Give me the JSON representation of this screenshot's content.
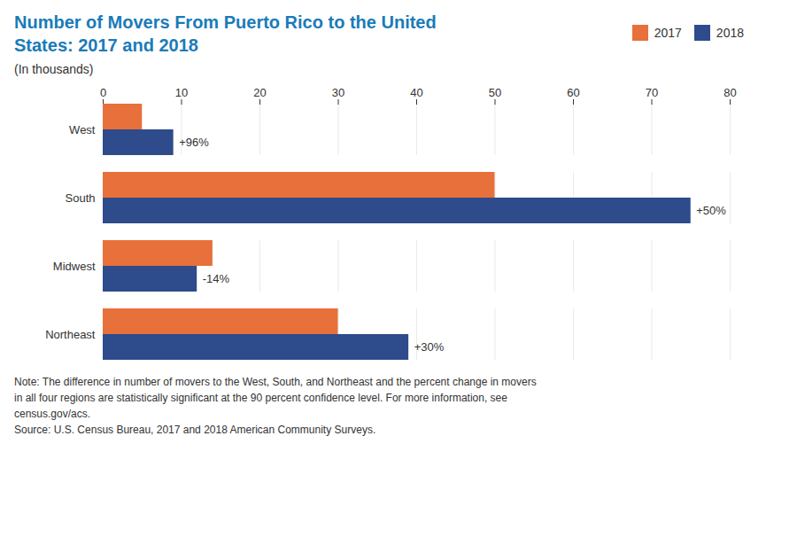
{
  "chart_data": {
    "type": "bar",
    "orientation": "horizontal",
    "title": "Number of Movers From Puerto Rico to the United\nStates: 2017 and 2018",
    "subtitle": "(In thousands)",
    "categories": [
      "West",
      "South",
      "Midwest",
      "Northeast"
    ],
    "series": [
      {
        "name": "2017",
        "color": "#E8703A",
        "values": [
          5,
          50,
          14,
          30
        ]
      },
      {
        "name": "2018",
        "color": "#2E4B8B",
        "values": [
          9,
          75,
          12,
          39
        ]
      }
    ],
    "annotations": [
      {
        "category": "West",
        "series": "2018",
        "text": "+96%"
      },
      {
        "category": "South",
        "series": "2018",
        "text": "+50%"
      },
      {
        "category": "Midwest",
        "series": "2018",
        "text": "-14%"
      },
      {
        "category": "Northeast",
        "series": "2018",
        "text": "+30%"
      }
    ],
    "xlim": [
      0,
      80
    ],
    "xticks": [
      0,
      10,
      20,
      30,
      40,
      50,
      60,
      70,
      80
    ],
    "grid": true,
    "legend": "upper right",
    "note": "Note: The difference in number of movers to the West, South, and Northeast and the percent change in movers\nin all four regions are statistically significant at the 90 percent confidence level. For more information, see\ncensus.gov/acs.\nSource: U.S. Census Bureau, 2017 and 2018 American Community Surveys."
  }
}
